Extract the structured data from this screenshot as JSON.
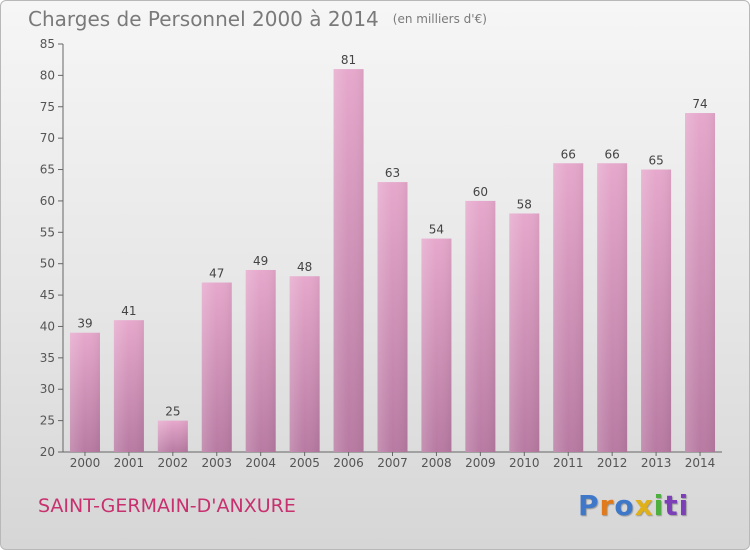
{
  "title": "Charges de Personnel 2000 à 2014",
  "subtitle": "(en milliers d'€)",
  "place": "SAINT-GERMAIN-D'ANXURE",
  "logo": [
    "P",
    "r",
    "o",
    "x",
    "i",
    "ti"
  ],
  "colors": {
    "bar_top": "#e6a8cc",
    "bar_bottom": "#b87aa2",
    "place_text": "#c8306e",
    "title_text": "#7a7a7a"
  },
  "chart_data": {
    "type": "bar",
    "title": "Charges de Personnel 2000 à 2014",
    "subtitle": "(en milliers d'€)",
    "categories": [
      "2000",
      "2001",
      "2002",
      "2003",
      "2004",
      "2005",
      "2006",
      "2007",
      "2008",
      "2009",
      "2010",
      "2011",
      "2012",
      "2013",
      "2014"
    ],
    "values": [
      39,
      41,
      25,
      47,
      49,
      48,
      81,
      63,
      54,
      60,
      58,
      66,
      66,
      65,
      74
    ],
    "ylim": [
      20,
      85
    ],
    "yticks": [
      20,
      25,
      30,
      35,
      40,
      45,
      50,
      55,
      60,
      65,
      70,
      75,
      80,
      85
    ],
    "grid": false,
    "legend": "none"
  }
}
